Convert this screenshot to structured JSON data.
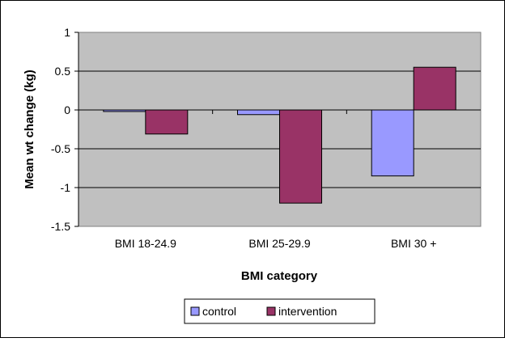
{
  "chart_data": {
    "type": "bar",
    "categories": [
      "BMI 18-24.9",
      "BMI 25-29.9",
      "BMI 30 +"
    ],
    "series": [
      {
        "name": "control",
        "values": [
          -0.02,
          -0.06,
          -0.85
        ]
      },
      {
        "name": "intervention",
        "values": [
          -0.31,
          -1.2,
          0.55
        ]
      }
    ],
    "colors": {
      "control": "#9999ff",
      "intervention": "#993366",
      "plot_bg": "#c0c0c0",
      "gridline": "#000000"
    },
    "title": "",
    "xlabel": "BMI category",
    "ylabel": "Mean wt change (kg)",
    "ylim": [
      -1.5,
      1
    ],
    "yticks": [
      1,
      0.5,
      0,
      -0.5,
      -1,
      -1.5
    ],
    "ytick_labels": [
      "1",
      "0.5",
      "0",
      "-0.5",
      "-1",
      "-1.5"
    ],
    "grid": true,
    "legend_position": "bottom"
  }
}
